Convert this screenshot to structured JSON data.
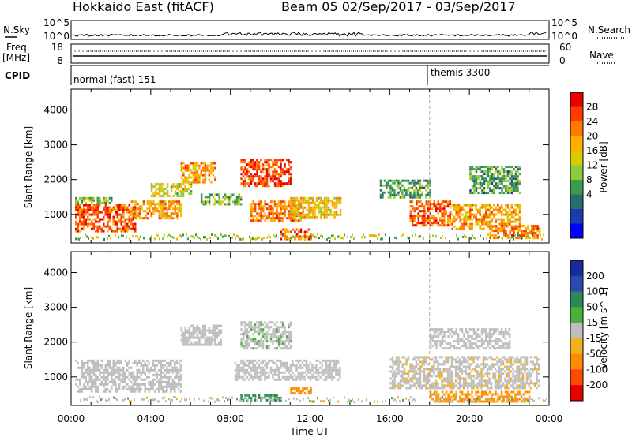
{
  "header": {
    "title_left": "Hokkaido East (fitACF)",
    "title_right": "Beam 05  02/Sep/2017 - 03/Sep/2017"
  },
  "strip_nsky": {
    "label": "N.Sky",
    "left_ticks": [
      "10^5",
      "10^0"
    ],
    "right_ticks": [
      "10^5",
      "10^0"
    ],
    "right_label": "N.Search"
  },
  "strip_freq": {
    "label": "Freq.",
    "unit": "[MHz]",
    "left_ticks": [
      "18",
      "8"
    ],
    "right_ticks": [
      "60",
      "0"
    ],
    "right_label": "Nave"
  },
  "strip_cpid": {
    "label": "CPID",
    "modes": [
      {
        "name": "normal (fast) 151",
        "start_hour": 0
      },
      {
        "name": "themis 3300",
        "start_hour": 18
      }
    ]
  },
  "x_axis": {
    "label": "Time UT",
    "ticks": [
      "00:00",
      "04:00",
      "08:00",
      "12:00",
      "16:00",
      "20:00",
      "00:00"
    ]
  },
  "power_legend": {
    "label": "Power [dB]",
    "ticks": [
      "28",
      "24",
      "20",
      "16",
      "12",
      "8",
      "4"
    ],
    "colors": [
      "#e60000",
      "#ff3a00",
      "#ff7800",
      "#ffae00",
      "#d8cc00",
      "#8ccc3c",
      "#3c9c4c",
      "#2a6e6a",
      "#1a3cb0",
      "#0000ff"
    ]
  },
  "velocity_legend": {
    "label": "Velocity [m s^-1]",
    "ticks": [
      "200",
      "100",
      "50",
      "15",
      "-15",
      "-50",
      "-100",
      "-200"
    ],
    "colors": [
      "#1a2a9c",
      "#2a4ab0",
      "#2a8a5a",
      "#4caf3c",
      "#bebebe",
      "#f0b020",
      "#ff8c00",
      "#ff4800",
      "#e60000"
    ]
  },
  "chart_data": [
    {
      "type": "heatmap",
      "name": "power",
      "ylabel": "Slant Range [km]",
      "xlabel": "Time UT",
      "xlim": [
        0,
        24
      ],
      "ylim": [
        180,
        4600
      ],
      "yticks": [
        1000,
        2000,
        3000,
        4000
      ],
      "regions": [
        {
          "t0": 0.2,
          "t1": 3.2,
          "r0": 500,
          "r1": 1300,
          "v": 26
        },
        {
          "t0": 0.2,
          "t1": 2.0,
          "r0": 1300,
          "r1": 1500,
          "v": 14
        },
        {
          "t0": 3.0,
          "t1": 5.5,
          "r0": 900,
          "r1": 1400,
          "v": 22
        },
        {
          "t0": 4.0,
          "t1": 6.0,
          "r0": 1500,
          "r1": 1900,
          "v": 18
        },
        {
          "t0": 5.5,
          "t1": 7.2,
          "r0": 1900,
          "r1": 2500,
          "v": 22
        },
        {
          "t0": 6.5,
          "t1": 8.5,
          "r0": 1300,
          "r1": 1600,
          "v": 14
        },
        {
          "t0": 8.5,
          "t1": 11.0,
          "r0": 1800,
          "r1": 2600,
          "v": 27
        },
        {
          "t0": 9.0,
          "t1": 11.5,
          "r0": 800,
          "r1": 1400,
          "v": 24
        },
        {
          "t0": 11.0,
          "t1": 13.5,
          "r0": 900,
          "r1": 1500,
          "v": 20
        },
        {
          "t0": 10.5,
          "t1": 12.0,
          "r0": 300,
          "r1": 600,
          "v": 26
        },
        {
          "t0": 15.5,
          "t1": 18.0,
          "r0": 1500,
          "r1": 2000,
          "v": 12
        },
        {
          "t0": 17.0,
          "t1": 19.0,
          "r0": 700,
          "r1": 1400,
          "v": 26
        },
        {
          "t0": 19.0,
          "t1": 22.5,
          "r0": 600,
          "r1": 1300,
          "v": 22
        },
        {
          "t0": 20.0,
          "t1": 22.5,
          "r0": 1600,
          "r1": 2400,
          "v": 12
        },
        {
          "t0": 21.0,
          "t1": 23.5,
          "r0": 300,
          "r1": 700,
          "v": 24
        }
      ]
    },
    {
      "type": "heatmap",
      "name": "velocity",
      "ylabel": "Slant Range [km]",
      "xlabel": "Time UT",
      "xlim": [
        0,
        24
      ],
      "ylim": [
        180,
        4600
      ],
      "yticks": [
        1000,
        2000,
        3000,
        4000
      ],
      "regions": [
        {
          "t0": 0.2,
          "t1": 5.5,
          "r0": 600,
          "r1": 1500,
          "v": 0
        },
        {
          "t0": 5.5,
          "t1": 7.5,
          "r0": 1900,
          "r1": 2500,
          "v": 0
        },
        {
          "t0": 8.5,
          "t1": 11.0,
          "r0": 1800,
          "r1": 2600,
          "v": 5
        },
        {
          "t0": 8.2,
          "t1": 13.5,
          "r0": 900,
          "r1": 1500,
          "v": 0
        },
        {
          "t0": 8.5,
          "t1": 10.5,
          "r0": 300,
          "r1": 500,
          "v": 40
        },
        {
          "t0": 11.0,
          "t1": 12.0,
          "r0": 500,
          "r1": 700,
          "v": -60
        },
        {
          "t0": 16.0,
          "t1": 23.5,
          "r0": 700,
          "r1": 1600,
          "v": -5
        },
        {
          "t0": 18.0,
          "t1": 23.0,
          "r0": 300,
          "r1": 600,
          "v": -40
        },
        {
          "t0": 18.0,
          "t1": 22.0,
          "r0": 1800,
          "r1": 2400,
          "v": 0
        }
      ]
    }
  ]
}
